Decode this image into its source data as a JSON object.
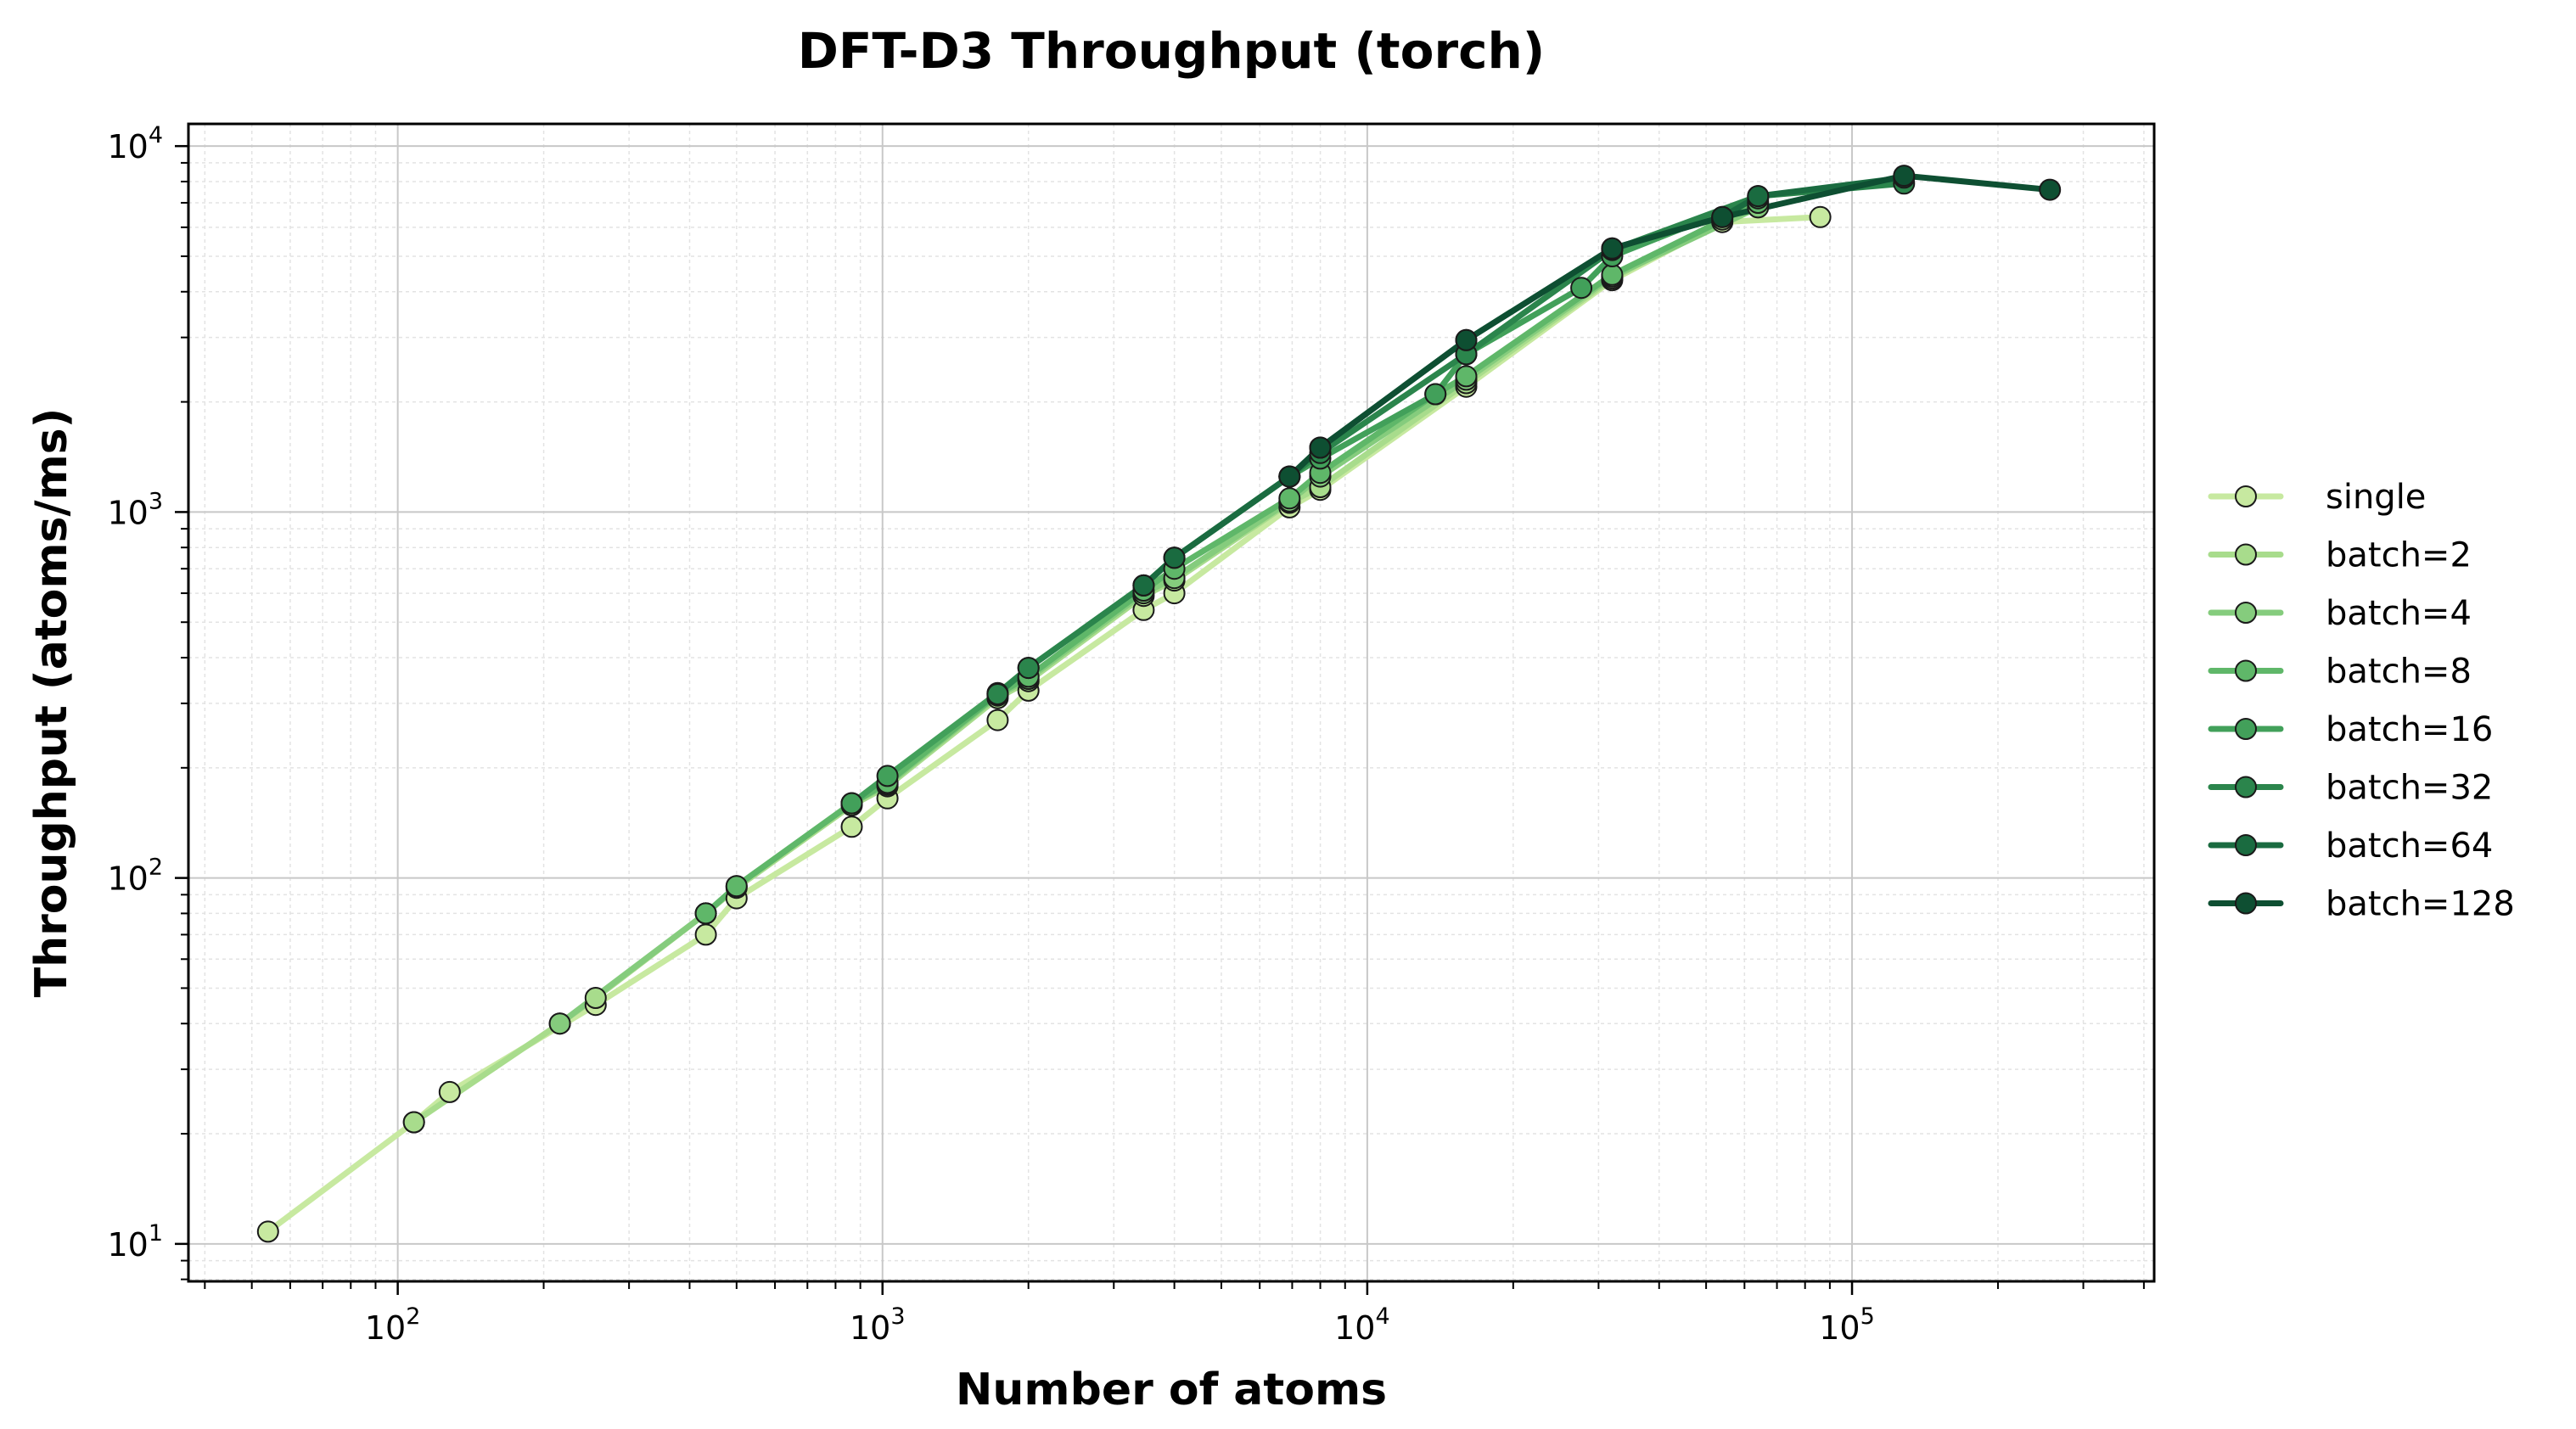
{
  "chart_data": {
    "type": "line",
    "title": "DFT-D3 Throughput (torch)",
    "xlabel": "Number of atoms",
    "ylabel": "Throughput (atoms/ms)",
    "xscale": "log",
    "yscale": "log",
    "xlim": [
      37,
      420000
    ],
    "ylim": [
      7.9,
      11500
    ],
    "x_ticks": [
      {
        "value": 100,
        "base": "10",
        "exp": "2"
      },
      {
        "value": 1000,
        "base": "10",
        "exp": "3"
      },
      {
        "value": 10000,
        "base": "10",
        "exp": "4"
      },
      {
        "value": 100000,
        "base": "10",
        "exp": "5"
      }
    ],
    "y_ticks": [
      {
        "value": 10,
        "base": "10",
        "exp": "1"
      },
      {
        "value": 100,
        "base": "10",
        "exp": "2"
      },
      {
        "value": 1000,
        "base": "10",
        "exp": "3"
      },
      {
        "value": 10000,
        "base": "10",
        "exp": "4"
      }
    ],
    "grid": true,
    "legend_position": "right",
    "series": [
      {
        "name": "single",
        "color": "#c7e9a0",
        "x": [
          54,
          108,
          128,
          256,
          432,
          500,
          864,
          1024,
          1728,
          2000,
          3456,
          4000,
          6912,
          8000,
          16000,
          32000,
          54000,
          86000
        ],
        "y": [
          10.8,
          21.5,
          26,
          45,
          70,
          88,
          138,
          165,
          270,
          325,
          540,
          600,
          1030,
          1150,
          2200,
          4300,
          6200,
          6400
        ]
      },
      {
        "name": "batch=2",
        "color": "#a8dc8c",
        "x": [
          108,
          216,
          256,
          432,
          500,
          864,
          1024,
          1728,
          2000,
          3456,
          4000,
          6912,
          8000,
          16000,
          32000,
          54000
        ],
        "y": [
          21.5,
          40,
          47,
          80,
          94,
          158,
          178,
          310,
          345,
          590,
          650,
          1060,
          1170,
          2250,
          4350,
          6300
        ]
      },
      {
        "name": "batch=4",
        "color": "#85cc7d",
        "x": [
          216,
          432,
          500,
          864,
          1024,
          1728,
          2000,
          3456,
          4000,
          6912,
          8000,
          16000,
          32000,
          64000
        ],
        "y": [
          40,
          80,
          95,
          160,
          180,
          315,
          350,
          600,
          660,
          1070,
          1250,
          2300,
          4400,
          6800
        ]
      },
      {
        "name": "batch=8",
        "color": "#5fb769",
        "x": [
          432,
          500,
          864,
          1024,
          1728,
          2000,
          3456,
          4000,
          6912,
          8000,
          13824,
          16000,
          32000,
          64000
        ],
        "y": [
          80,
          95,
          160,
          182,
          318,
          355,
          610,
          700,
          1090,
          1280,
          2100,
          2350,
          4450,
          7000
        ]
      },
      {
        "name": "batch=16",
        "color": "#42a05a",
        "x": [
          864,
          1024,
          1728,
          2000,
          3456,
          4000,
          6912,
          8000,
          13824,
          16000,
          27648,
          32000,
          64000
        ],
        "y": [
          160,
          190,
          320,
          375,
          630,
          750,
          1250,
          1400,
          2100,
          2700,
          4100,
          5000,
          7200
        ]
      },
      {
        "name": "batch=32",
        "color": "#2b854c",
        "x": [
          1728,
          2000,
          3456,
          4000,
          6912,
          8000,
          16000,
          32000,
          64000,
          128000
        ],
        "y": [
          318,
          375,
          630,
          750,
          1250,
          1450,
          2700,
          5200,
          7300,
          7900
        ]
      },
      {
        "name": "batch=64",
        "color": "#1a6b40",
        "x": [
          3456,
          4000,
          6912,
          8000,
          16000,
          32000,
          54000,
          64000,
          128000
        ],
        "y": [
          630,
          750,
          1250,
          1500,
          2950,
          5250,
          6400,
          7300,
          8200
        ]
      },
      {
        "name": "batch=128",
        "color": "#0e4f32",
        "x": [
          6912,
          8000,
          16000,
          32000,
          54000,
          128000,
          256000
        ],
        "y": [
          1250,
          1500,
          2950,
          5250,
          6400,
          8300,
          7600
        ]
      }
    ]
  }
}
